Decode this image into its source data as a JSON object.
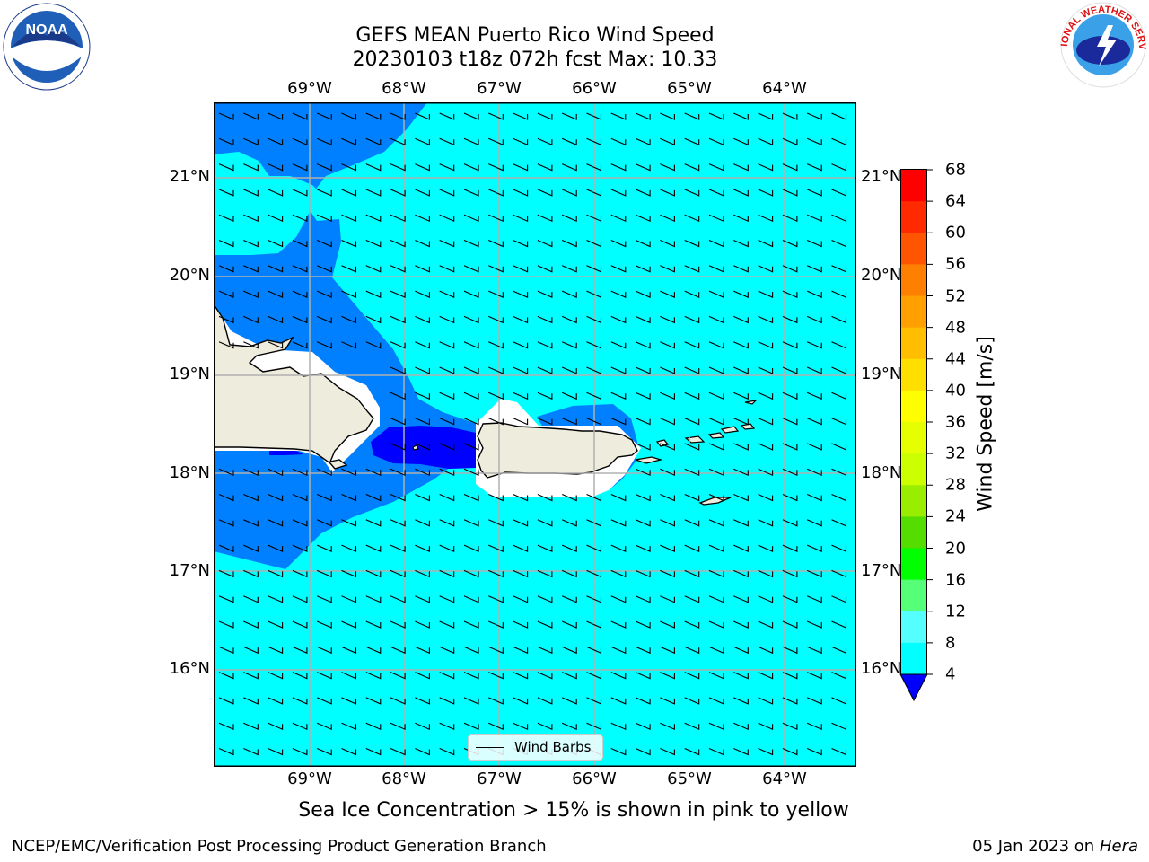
{
  "title_line1": "GEFS MEAN Puerto Rico Wind Speed",
  "title_line2": "20230103 t18z 072h fcst   Max: 10.33",
  "map": {
    "lon_ticks": [
      "69°W",
      "68°W",
      "67°W",
      "66°W",
      "65°W",
      "64°W"
    ],
    "lat_ticks": [
      "21°N",
      "20°N",
      "19°N",
      "18°N",
      "17°N",
      "16°N"
    ],
    "land_color": "#eeecdc",
    "ocean_levels": {
      "light_cyan_8_12": "#00ffff",
      "blue_4_8": "#0080ff",
      "deep_blue_below_4": "#0000ff"
    },
    "gridline_color": "#b0b0b0"
  },
  "colorbar": {
    "label": "Wind Speed [m/s]",
    "ticks": [
      "68",
      "64",
      "60",
      "56",
      "52",
      "48",
      "44",
      "40",
      "36",
      "32",
      "28",
      "24",
      "20",
      "16",
      "12",
      "8",
      "4"
    ],
    "colors_top_to_bottom": [
      "#ff0000",
      "#ff2a00",
      "#ff5500",
      "#ff7f00",
      "#ff9f00",
      "#ffbf00",
      "#ffdf00",
      "#ffff00",
      "#e6ff00",
      "#ccff00",
      "#99ee00",
      "#55dd00",
      "#00ff00",
      "#55ff77",
      "#aaffff",
      "#55ffff",
      "#00ffff",
      "#0080ff"
    ],
    "extend_color": "#0000ff"
  },
  "legend": {
    "label": "Wind Barbs"
  },
  "subtitle": "Sea Ice Concentration > 15% is shown in pink to yellow",
  "footer_left": "NCEP/EMC/Verification Post Processing Product Generation Branch",
  "footer_right_date": "05 Jan 2023 on ",
  "footer_right_host": "Hera",
  "logos": {
    "left": "NOAA",
    "right_text": "NATIONAL WEATHER SERVICE"
  }
}
